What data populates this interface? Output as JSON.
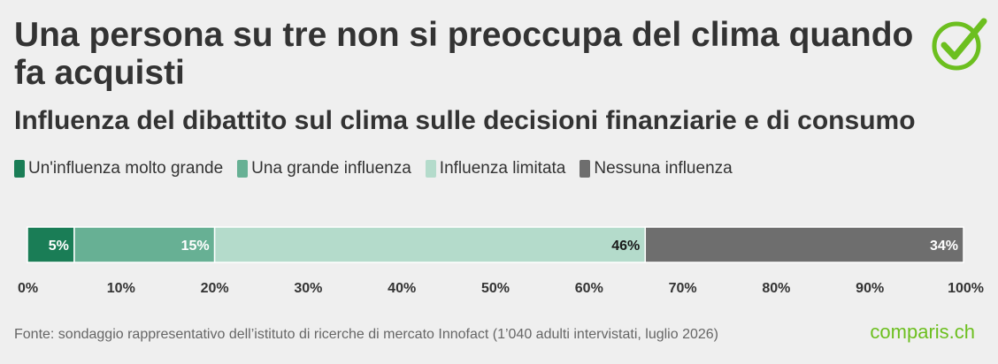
{
  "title": "Una persona su tre non si preoccupa del clima quando fa acquisti",
  "subtitle": "Influenza del dibattito sul clima sulle decisioni finanziarie e di consumo",
  "brand": "comparis.ch",
  "source": "Fonte: sondaggio rappresentativo dell’istituto di ricerche di mercato Innofact (1’040 adulti intervistati, luglio 2026)",
  "colors": {
    "series_1": "#1a7d56",
    "series_2": "#67b094",
    "series_3": "#b4dbcb",
    "series_4": "#6e6e6e",
    "label_light": "#ffffff",
    "label_dark": "#1a1a1a",
    "check_icon": "#6cbf1f"
  },
  "icons": {
    "logo": "check-circle-icon"
  },
  "chart_data": {
    "type": "bar",
    "orientation": "horizontal",
    "stacked": true,
    "title": "Una persona su tre non si preoccupa del clima quando fa acquisti",
    "subtitle": "Influenza del dibattito sul clima sulle decisioni finanziarie e di consumo",
    "xlim": [
      0,
      100
    ],
    "x_ticks": [
      "0%",
      "10%",
      "20%",
      "30%",
      "40%",
      "50%",
      "60%",
      "70%",
      "80%",
      "90%",
      "100%"
    ],
    "grid": false,
    "legend_position": "top-left",
    "series": [
      {
        "name": "Un'influenza molto grande",
        "value": 5,
        "label": "5%"
      },
      {
        "name": "Una grande influenza",
        "value": 15,
        "label": "15%"
      },
      {
        "name": "Influenza limitata",
        "value": 46,
        "label": "46%"
      },
      {
        "name": "Nessuna influenza",
        "value": 34,
        "label": "34%"
      }
    ]
  }
}
